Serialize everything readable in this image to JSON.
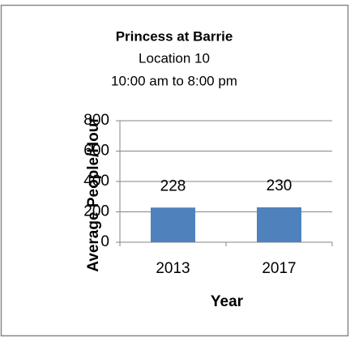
{
  "chart_data": {
    "type": "bar",
    "title": "Princess at Barrie",
    "subtitle": [
      "Location 10",
      "10:00 am to 8:00 pm"
    ],
    "categories": [
      "2013",
      "2017"
    ],
    "values": [
      228,
      230
    ],
    "color": "#4f81bd",
    "xlabel": "Year",
    "ylabel": "Average People/Hour",
    "ylim": [
      0,
      800
    ],
    "yticks": [
      0,
      200,
      400,
      600,
      800
    ],
    "grid": true
  }
}
